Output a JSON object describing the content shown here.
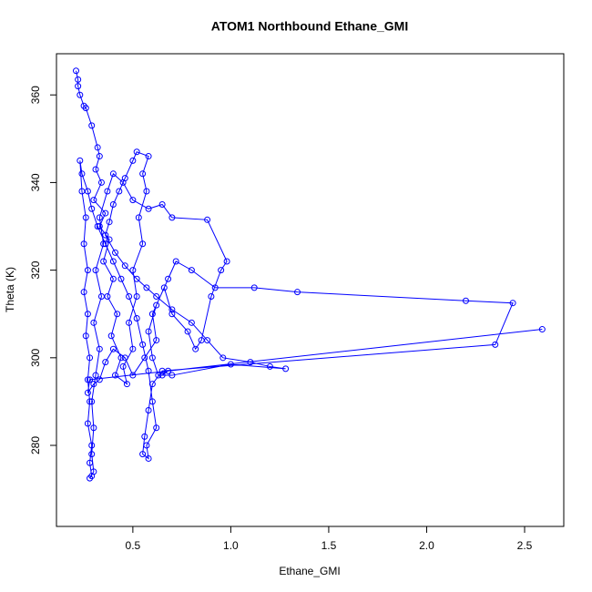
{
  "chart_data": {
    "type": "line",
    "title": "ATOM1 Northbound Ethane_GMI",
    "x_label": "Ethane_GMI",
    "y_label": "Theta (K)",
    "xlim": [
      0.11,
      2.7
    ],
    "ylim": [
      261.5,
      369.4
    ],
    "xticks": [
      0.5,
      {
        "value": 1,
        "label": "1.0"
      },
      1.5,
      {
        "value": 2,
        "label": "2.0"
      },
      2.5
    ],
    "yticks": [
      280,
      300,
      320,
      340,
      360
    ],
    "markers": true,
    "grid": false,
    "x": [
      0.21,
      0.22,
      0.22,
      0.23,
      0.25,
      0.26,
      0.29,
      0.32,
      0.33,
      0.31,
      0.34,
      0.3,
      0.36,
      0.33,
      0.38,
      0.35,
      0.4,
      0.37,
      0.42,
      0.39,
      0.44,
      0.41,
      0.47,
      0.45,
      0.5,
      0.48,
      0.52,
      0.5,
      0.55,
      0.53,
      0.57,
      0.55,
      0.58,
      0.52,
      0.5,
      0.46,
      0.43,
      0.4,
      0.38,
      0.36,
      0.41,
      0.46,
      0.52,
      0.57,
      0.62,
      0.7,
      0.8,
      0.88,
      0.96,
      1.1,
      1.2,
      1.28,
      1.0,
      0.7,
      0.63,
      0.6,
      0.58,
      0.62,
      0.68,
      0.72,
      0.8,
      0.92,
      1.12,
      1.34,
      2.2,
      2.44,
      2.35,
      0.65,
      0.6,
      0.58,
      0.56,
      0.55,
      0.58,
      0.57,
      0.62,
      0.6,
      0.58,
      0.55,
      0.52,
      0.48,
      0.44,
      0.4,
      0.36,
      0.32,
      0.29,
      0.27,
      0.24,
      0.23,
      0.24,
      0.26,
      0.25,
      0.27,
      0.25,
      0.27,
      0.26,
      0.28,
      0.27,
      0.28,
      0.27,
      0.29,
      0.28,
      0.29,
      0.28,
      0.3,
      0.29,
      0.3,
      0.29,
      0.31,
      0.33,
      0.3,
      0.34,
      0.31,
      0.35,
      0.33,
      0.37,
      0.4,
      0.45,
      0.5,
      0.58,
      0.65,
      0.7,
      0.88,
      0.98,
      0.95,
      0.9,
      0.85,
      0.82,
      0.78,
      0.7,
      0.66,
      0.6,
      0.62,
      0.56,
      0.5,
      0.46,
      0.4,
      0.36,
      0.33,
      0.3,
      0.27,
      0.28,
      2.59,
      0.68,
      0.65
    ],
    "series": [
      {
        "color": "#0000ff",
        "values": [
          365.5,
          363.5,
          362,
          360,
          357.5,
          357,
          353,
          348,
          346,
          343,
          340,
          336,
          333,
          330,
          327,
          322,
          318,
          314,
          310,
          305,
          300,
          296,
          294,
          298,
          302,
          308,
          314,
          320,
          326,
          332,
          338,
          342,
          346,
          347,
          345,
          341,
          338,
          335,
          331,
          328,
          324,
          321,
          318,
          316,
          314,
          311,
          308,
          304,
          300,
          299,
          298,
          297.5,
          298.5,
          296,
          296,
          300,
          306,
          312,
          318,
          322,
          320,
          316,
          316,
          315,
          313,
          312.5,
          303,
          297,
          294,
          288,
          282,
          278,
          277,
          280,
          284,
          290,
          297,
          303,
          309,
          314,
          318,
          322,
          326,
          330,
          334,
          338,
          342,
          345,
          338,
          332,
          326,
          320,
          315,
          310,
          305,
          300,
          295,
          290,
          285,
          280,
          276,
          273,
          272.5,
          274,
          278,
          284,
          290,
          296,
          302,
          308,
          314,
          320,
          326,
          332,
          338,
          342,
          340,
          336,
          334,
          335,
          332,
          331.5,
          322,
          320,
          314,
          304,
          302,
          306,
          310,
          316,
          310,
          304,
          300,
          296,
          300,
          302,
          299,
          295,
          294,
          292,
          295,
          306.5,
          297,
          296
        ]
      }
    ]
  }
}
